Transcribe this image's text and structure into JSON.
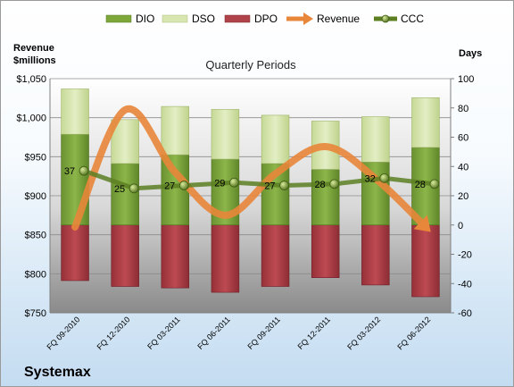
{
  "chart_data": {
    "type": "combo",
    "title": "Quarterly Periods",
    "company": "Systemax",
    "y_left_label": "Revenue\n$millions",
    "y_right_label": "Days",
    "y_left_range": [
      750,
      1050
    ],
    "y_left_ticks": [
      "$750",
      "$800",
      "$850",
      "$900",
      "$950",
      "$1,000",
      "$1,050"
    ],
    "y_right_range": [
      -60,
      100
    ],
    "y_right_ticks": [
      "-60",
      "-40",
      "-20",
      "0",
      "20",
      "40",
      "60",
      "80",
      "100"
    ],
    "grid": true,
    "legend_position": "top",
    "categories": [
      "FQ 09-2010",
      "FQ 12-2010",
      "FQ 03-2011",
      "FQ 06-2011",
      "FQ 09-2011",
      "FQ 12-2011",
      "FQ 03-2012",
      "FQ 06-2012"
    ],
    "legend": [
      {
        "name": "DIO",
        "color": "#7ea73a",
        "kind": "bar"
      },
      {
        "name": "DSO",
        "color": "#d7e6b0",
        "kind": "bar"
      },
      {
        "name": "DPO",
        "color": "#b0424a",
        "kind": "bar"
      },
      {
        "name": "Revenue",
        "color": "#e8863a",
        "kind": "arrow"
      },
      {
        "name": "CCC",
        "color": "#5c7f22",
        "kind": "marker"
      }
    ],
    "series": [
      {
        "name": "DIO",
        "axis": "days",
        "values": [
          62,
          42,
          48,
          45,
          42,
          38,
          43,
          53
        ]
      },
      {
        "name": "DSO",
        "axis": "days",
        "values": [
          31,
          30,
          33,
          34,
          33,
          33,
          31,
          34
        ]
      },
      {
        "name": "DPO",
        "axis": "days",
        "values": [
          -38,
          -42,
          -43,
          -46,
          -42,
          -36,
          -41,
          -49
        ]
      },
      {
        "name": "Revenue",
        "axis": "revenue",
        "values": [
          860,
          1010,
          930,
          875,
          928,
          963,
          922,
          860
        ]
      },
      {
        "name": "CCC",
        "axis": "days",
        "values": [
          37,
          25,
          27,
          29,
          27,
          28,
          32,
          28
        ]
      }
    ],
    "ccc_labels": [
      "37",
      "25",
      "27",
      "29",
      "27",
      "28",
      "32",
      "28"
    ]
  }
}
